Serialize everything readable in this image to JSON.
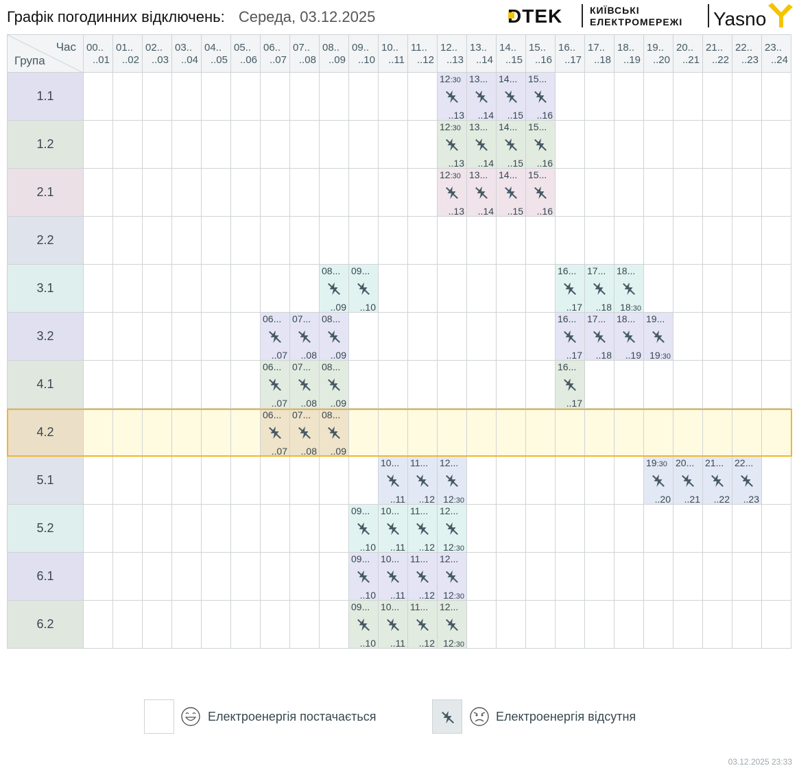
{
  "header": {
    "title": "Графік погодинних відключень:",
    "date": "Середа, 03.12.2025",
    "brand_dtek": "DTEK",
    "brand_kyiv_line1": "КИЇВСЬКІ",
    "brand_kyiv_line2": "ЕЛЕКТРОМЕРЕЖІ",
    "brand_yasno": "Yasno"
  },
  "table": {
    "corner_hour": "Час",
    "corner_group": "Група",
    "hours": [
      {
        "a": "00..",
        "b": "..01"
      },
      {
        "a": "01..",
        "b": "..02"
      },
      {
        "a": "02..",
        "b": "..03"
      },
      {
        "a": "03..",
        "b": "..04"
      },
      {
        "a": "04..",
        "b": "..05"
      },
      {
        "a": "05..",
        "b": "..06"
      },
      {
        "a": "06..",
        "b": "..07"
      },
      {
        "a": "07..",
        "b": "..08"
      },
      {
        "a": "08..",
        "b": "..09"
      },
      {
        "a": "09..",
        "b": "..10"
      },
      {
        "a": "10..",
        "b": "..11"
      },
      {
        "a": "11..",
        "b": "..12"
      },
      {
        "a": "12..",
        "b": "..13"
      },
      {
        "a": "13..",
        "b": "..14"
      },
      {
        "a": "14..",
        "b": "..15"
      },
      {
        "a": "15..",
        "b": "..16"
      },
      {
        "a": "16..",
        "b": "..17"
      },
      {
        "a": "17..",
        "b": "..18"
      },
      {
        "a": "18..",
        "b": "..19"
      },
      {
        "a": "19..",
        "b": "..20"
      },
      {
        "a": "20..",
        "b": "..21"
      },
      {
        "a": "21..",
        "b": "..22"
      },
      {
        "a": "22..",
        "b": "..23"
      },
      {
        "a": "23..",
        "b": "..24"
      }
    ],
    "highlighted_group": "4.2",
    "groups": [
      {
        "name": "1.1",
        "label_color": "#e1e0f0",
        "cell_color": "#e4e4f5",
        "outages": [
          {
            "h": 12,
            "s": "12",
            "s_small": ":30",
            "e": "..13"
          },
          {
            "h": 13,
            "s": "13...",
            "e": "..14"
          },
          {
            "h": 14,
            "s": "14...",
            "e": "..15"
          },
          {
            "h": 15,
            "s": "15...",
            "e": "..16"
          }
        ]
      },
      {
        "name": "1.2",
        "label_color": "#e0e7df",
        "cell_color": "#e2ebe0",
        "outages": [
          {
            "h": 12,
            "s": "12",
            "s_small": ":30",
            "e": "..13"
          },
          {
            "h": 13,
            "s": "13...",
            "e": "..14"
          },
          {
            "h": 14,
            "s": "14...",
            "e": "..15"
          },
          {
            "h": 15,
            "s": "15...",
            "e": "..16"
          }
        ]
      },
      {
        "name": "2.1",
        "label_color": "#ece0e7",
        "cell_color": "#f0e3ea",
        "outages": [
          {
            "h": 12,
            "s": "12",
            "s_small": ":30",
            "e": "..13"
          },
          {
            "h": 13,
            "s": "13...",
            "e": "..14"
          },
          {
            "h": 14,
            "s": "14...",
            "e": "..15"
          },
          {
            "h": 15,
            "s": "15...",
            "e": "..16"
          }
        ]
      },
      {
        "name": "2.2",
        "label_color": "#dfe3ec",
        "cell_color": "#e3e8f2",
        "outages": []
      },
      {
        "name": "3.1",
        "label_color": "#dfefee",
        "cell_color": "#e1f3f1",
        "outages": [
          {
            "h": 8,
            "s": "08...",
            "e": "..09"
          },
          {
            "h": 9,
            "s": "09...",
            "e": "..10"
          },
          {
            "h": 16,
            "s": "16...",
            "e": "..17"
          },
          {
            "h": 17,
            "s": "17...",
            "e": "..18"
          },
          {
            "h": 18,
            "s": "18...",
            "e": "18",
            "e_small": ":30"
          }
        ]
      },
      {
        "name": "3.2",
        "label_color": "#e1e0f0",
        "cell_color": "#e4e4f5",
        "outages": [
          {
            "h": 6,
            "s": "06...",
            "e": "..07"
          },
          {
            "h": 7,
            "s": "07...",
            "e": "..08"
          },
          {
            "h": 8,
            "s": "08...",
            "e": "..09"
          },
          {
            "h": 16,
            "s": "16...",
            "e": "..17"
          },
          {
            "h": 17,
            "s": "17...",
            "e": "..18"
          },
          {
            "h": 18,
            "s": "18...",
            "e": "..19"
          },
          {
            "h": 19,
            "s": "19...",
            "e": "19",
            "e_small": ":30"
          }
        ]
      },
      {
        "name": "4.1",
        "label_color": "#e0e7df",
        "cell_color": "#e2ebe0",
        "outages": [
          {
            "h": 6,
            "s": "06...",
            "e": "..07"
          },
          {
            "h": 7,
            "s": "07...",
            "e": "..08"
          },
          {
            "h": 8,
            "s": "08...",
            "e": "..09"
          },
          {
            "h": 16,
            "s": "16...",
            "e": "..17"
          }
        ]
      },
      {
        "name": "4.2",
        "label_color": "#ecdfc8",
        "cell_color": "#efe3c9",
        "outages": [
          {
            "h": 6,
            "s": "06...",
            "e": "..07"
          },
          {
            "h": 7,
            "s": "07...",
            "e": "..08"
          },
          {
            "h": 8,
            "s": "08...",
            "e": "..09"
          }
        ]
      },
      {
        "name": "5.1",
        "label_color": "#dfe3ec",
        "cell_color": "#e3e8f5",
        "outages": [
          {
            "h": 10,
            "s": "10...",
            "e": "..11"
          },
          {
            "h": 11,
            "s": "11...",
            "e": "..12"
          },
          {
            "h": 12,
            "s": "12...",
            "e": "12",
            "e_small": ":30"
          },
          {
            "h": 19,
            "s": "19",
            "s_small": ":30",
            "e": "..20"
          },
          {
            "h": 20,
            "s": "20...",
            "e": "..21"
          },
          {
            "h": 21,
            "s": "21...",
            "e": "..22"
          },
          {
            "h": 22,
            "s": "22...",
            "e": "..23"
          }
        ]
      },
      {
        "name": "5.2",
        "label_color": "#dfefee",
        "cell_color": "#e1f3f1",
        "outages": [
          {
            "h": 9,
            "s": "09...",
            "e": "..10"
          },
          {
            "h": 10,
            "s": "10...",
            "e": "..11"
          },
          {
            "h": 11,
            "s": "11...",
            "e": "..12"
          },
          {
            "h": 12,
            "s": "12...",
            "e": "12",
            "e_small": ":30"
          }
        ]
      },
      {
        "name": "6.1",
        "label_color": "#e1e0f0",
        "cell_color": "#e4e4f5",
        "outages": [
          {
            "h": 9,
            "s": "09...",
            "e": "..10"
          },
          {
            "h": 10,
            "s": "10...",
            "e": "..11"
          },
          {
            "h": 11,
            "s": "11...",
            "e": "..12"
          },
          {
            "h": 12,
            "s": "12...",
            "e": "12",
            "e_small": ":30"
          }
        ]
      },
      {
        "name": "6.2",
        "label_color": "#e0e7df",
        "cell_color": "#e2ebe0",
        "outages": [
          {
            "h": 9,
            "s": "09...",
            "e": "..10"
          },
          {
            "h": 10,
            "s": "10...",
            "e": "..11"
          },
          {
            "h": 11,
            "s": "11...",
            "e": "..12"
          },
          {
            "h": 12,
            "s": "12...",
            "e": "12",
            "e_small": ":30"
          }
        ]
      }
    ]
  },
  "legend": {
    "on_text": "Електроенергія постачається",
    "off_text": "Електроенергія відсутня"
  },
  "footer": {
    "timestamp": "03.12.2025   23:33"
  },
  "colors": {
    "highlight_row": "#fffbe0",
    "highlight_border": "#f3b52b",
    "icon": "#455a64",
    "legend_off_box": "#e3e8ea"
  },
  "icons": {
    "outage": "power-off-icon",
    "legend_on": "smile-face-icon",
    "legend_off": "sad-face-icon"
  }
}
